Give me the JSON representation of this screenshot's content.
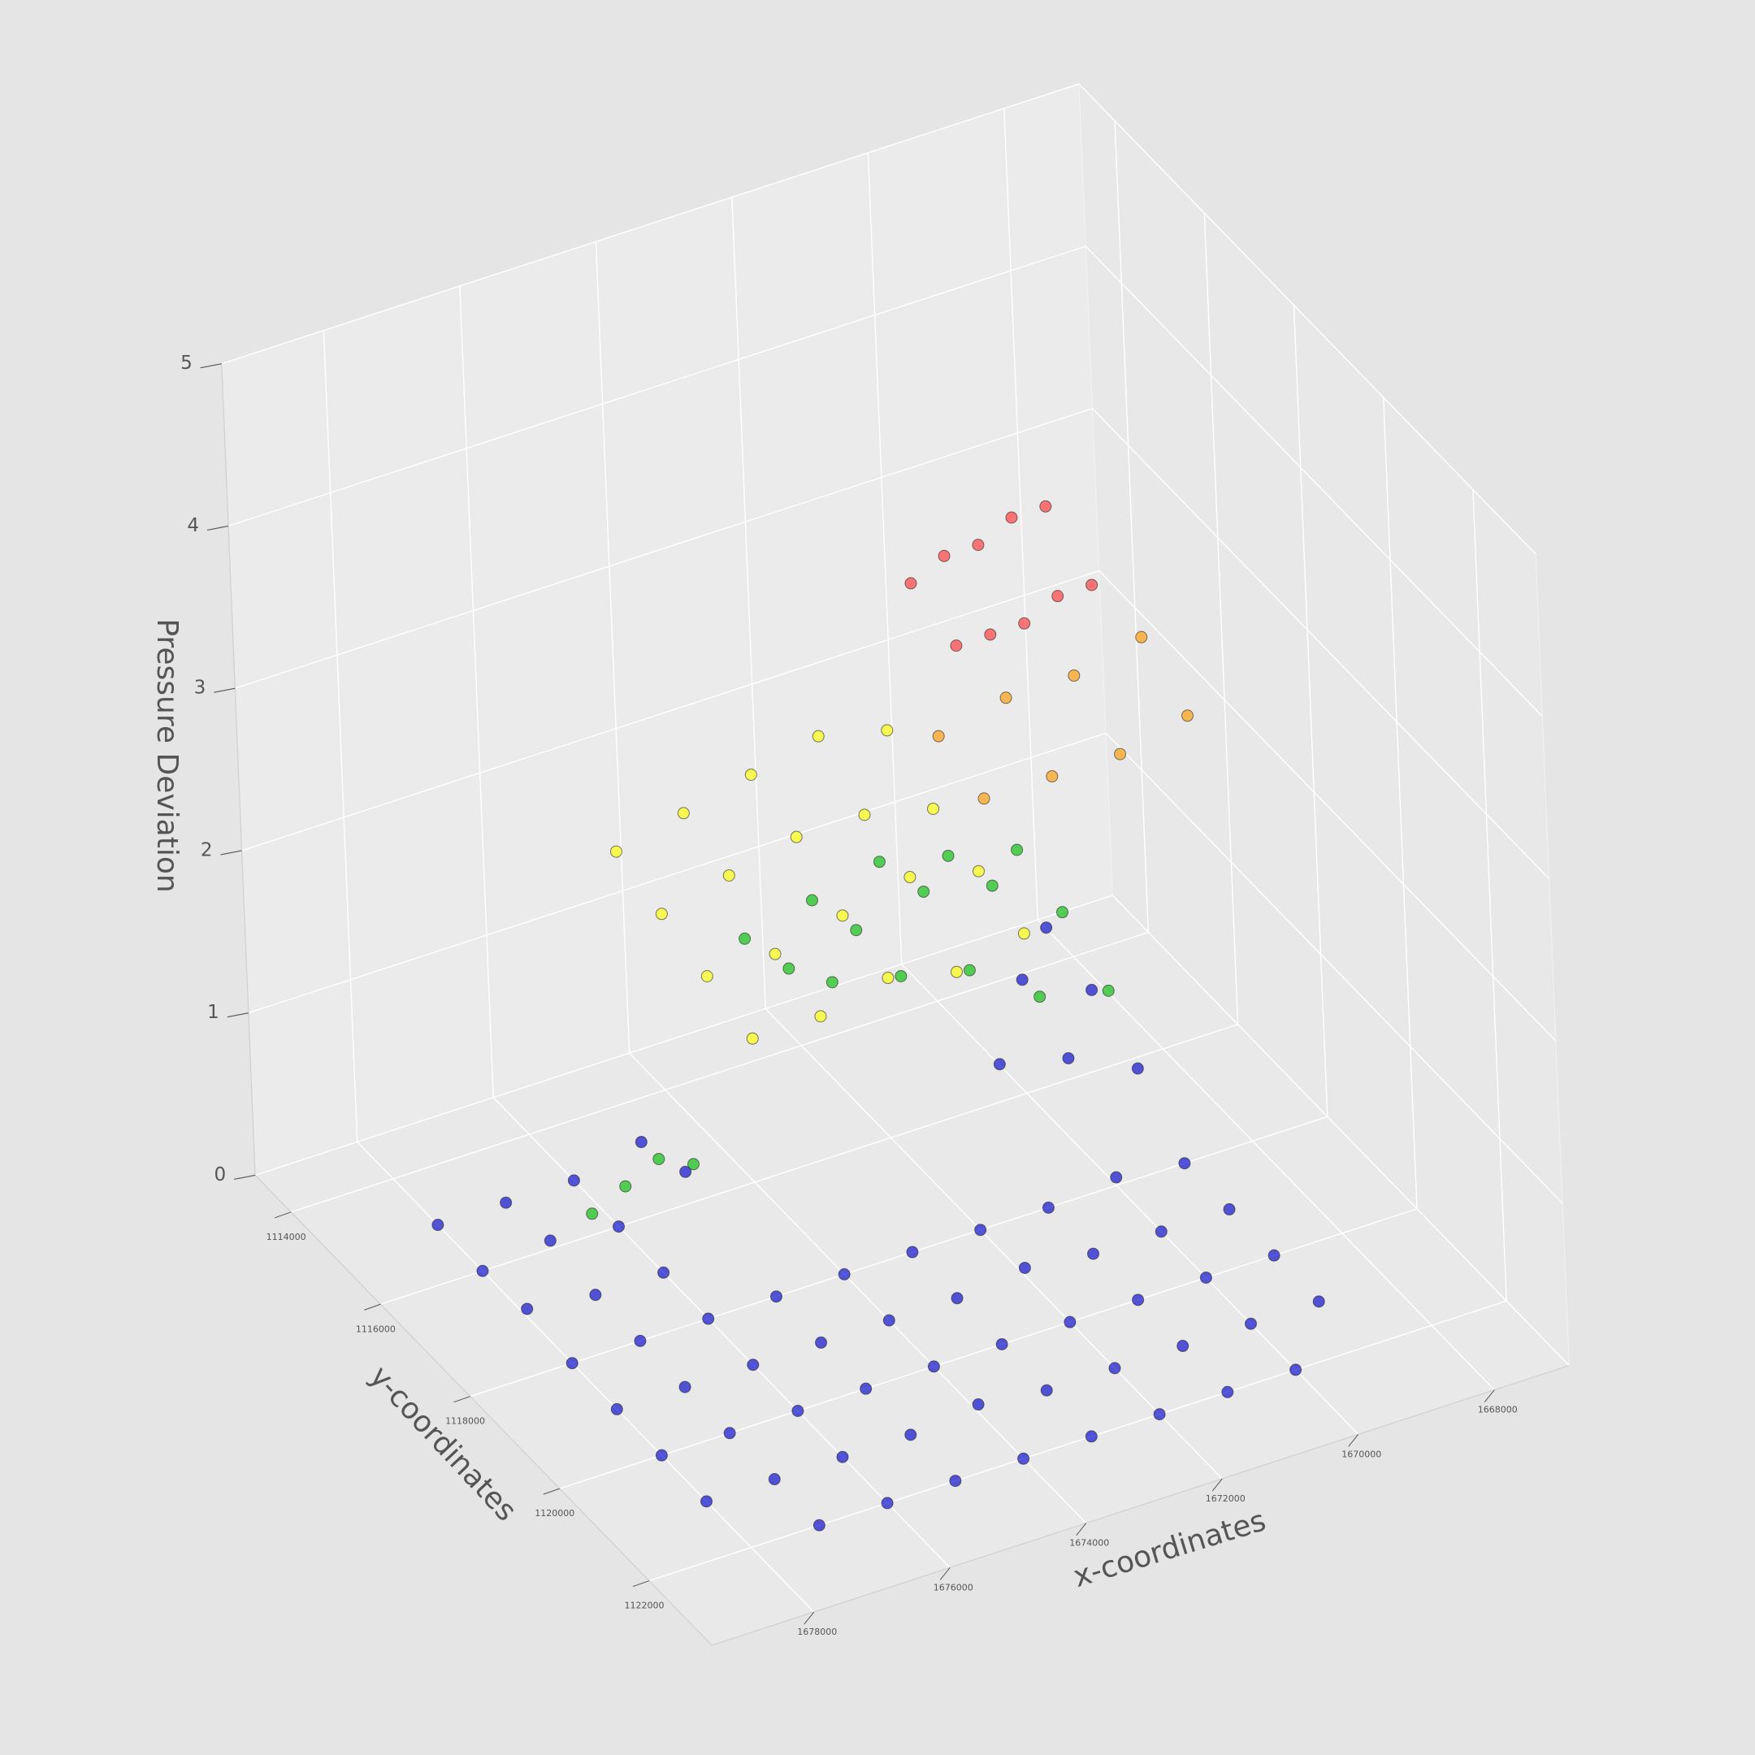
{
  "chart_data": {
    "type": "scatter3d",
    "xlabel": "x-coordinates",
    "ylabel": "y-coordinates",
    "zlabel": "Pressure Deviation",
    "xlim": [
      1666900,
      1679500
    ],
    "ylim": [
      1113200,
      1123400
    ],
    "zlim": [
      0,
      5
    ],
    "xticks": [
      1668000,
      1670000,
      1672000,
      1674000,
      1676000,
      1678000
    ],
    "yticks": [
      1114000,
      1116000,
      1118000,
      1120000,
      1122000
    ],
    "zticks": [
      0,
      1,
      2,
      3,
      4,
      5
    ],
    "grid": true,
    "series": [
      {
        "color": "#0000cc",
        "x": [
          1669000,
          1675000,
          1676000,
          1677000,
          1678000,
          1669000,
          1670000,
          1675000,
          1676000,
          1677000,
          1678000,
          1669000,
          1670000,
          1671000,
          1676000,
          1677000,
          1678000,
          1669000,
          1670000,
          1671000,
          1672000,
          1673000,
          1674000,
          1675000,
          1676000,
          1677000,
          1678000,
          1669000,
          1670000,
          1671000,
          1672000,
          1673000,
          1674000,
          1675000,
          1676000,
          1677000,
          1678000,
          1669000,
          1670000,
          1671000,
          1672000,
          1673000,
          1674000,
          1675000,
          1676000,
          1677000,
          1678000,
          1669000,
          1670000,
          1671000,
          1672000,
          1673000,
          1674000,
          1675000,
          1676000,
          1677000,
          1678000,
          1670000,
          1671000,
          1672000,
          1673000,
          1674000,
          1675000,
          1676000,
          1677000
        ],
        "y": [
          1115000,
          1115000,
          1115000,
          1115000,
          1115000,
          1116000,
          1116000,
          1116000,
          1116000,
          1116000,
          1116000,
          1117000,
          1117000,
          1117000,
          1117000,
          1117000,
          1117000,
          1118000,
          1118000,
          1118000,
          1118000,
          1118000,
          1118000,
          1118000,
          1118000,
          1118000,
          1118000,
          1119000,
          1119000,
          1119000,
          1119000,
          1119000,
          1119000,
          1119000,
          1119000,
          1119000,
          1119000,
          1120000,
          1120000,
          1120000,
          1120000,
          1120000,
          1120000,
          1120000,
          1120000,
          1120000,
          1120000,
          1121000,
          1121000,
          1121000,
          1121000,
          1121000,
          1121000,
          1121000,
          1121000,
          1121000,
          1121000,
          1122000,
          1122000,
          1122000,
          1122000,
          1122000,
          1122000,
          1122000,
          1122000
        ],
        "z": [
          0.6,
          0.1,
          0,
          0,
          0,
          0.5,
          0.7,
          0.2,
          0,
          0.05,
          0,
          0.3,
          0.5,
          0.6,
          0,
          0,
          0.05,
          0,
          0.05,
          0,
          0,
          0,
          0,
          0,
          0,
          0,
          0,
          0,
          0,
          0,
          0.05,
          0,
          0,
          0,
          0,
          0,
          0,
          0,
          0,
          0,
          0,
          0,
          0,
          0,
          0,
          0,
          0,
          0,
          0,
          0,
          0,
          0,
          0.05,
          0,
          0,
          0,
          0,
          0,
          0,
          0,
          0,
          0,
          0,
          0,
          0
        ]
      },
      {
        "color": "#00bb00",
        "x": [
          1670000,
          1671000,
          1672000,
          1673000,
          1674000,
          1670000,
          1671000,
          1672000,
          1673000,
          1674000,
          1670000,
          1671000,
          1672000,
          1673000,
          1674000,
          1675500,
          1676000,
          1676500,
          1677000
        ],
        "y": [
          1116000,
          1116000,
          1116000,
          1116000,
          1116000,
          1117000,
          1117000,
          1117000,
          1117000,
          1117000,
          1118000,
          1118000,
          1118000,
          1118000,
          1118000,
          1117000,
          1117000,
          1117000,
          1117000
        ],
        "z": [
          1.5,
          1.6,
          1.7,
          1.6,
          1.5,
          1.4,
          1.7,
          1.8,
          1.7,
          1.6,
          1.2,
          1.3,
          1.6,
          1.7,
          1.8,
          0.6,
          0.7,
          0.6,
          0.5
        ]
      },
      {
        "color": "#ffff00",
        "x": [
          1671500,
          1672500,
          1673500,
          1674500,
          1675500,
          1671500,
          1672500,
          1673500,
          1674500,
          1675500,
          1671500,
          1672500,
          1673500,
          1674500,
          1675500,
          1671500,
          1672500,
          1673500,
          1674500,
          1675500
        ],
        "y": [
          1115500,
          1115500,
          1115500,
          1115500,
          1115500,
          1116500,
          1116500,
          1116500,
          1116500,
          1116500,
          1117500,
          1117500,
          1117500,
          1117500,
          1117500,
          1118500,
          1118500,
          1118500,
          1118500,
          1118500
        ],
        "z": [
          2.3,
          2.4,
          2.3,
          2.2,
          2.1,
          2.1,
          2.2,
          2.2,
          2.1,
          2.0,
          2.0,
          2.1,
          2.0,
          1.9,
          1.9,
          1.9,
          1.8,
          1.9,
          1.8,
          1.8
        ]
      },
      {
        "color": "#ff9900",
        "x": [
          1669000,
          1670000,
          1671000,
          1672000,
          1669000,
          1670000,
          1671000,
          1672000
        ],
        "y": [
          1117500,
          1117500,
          1117500,
          1117500,
          1118500,
          1118500,
          1118500,
          1118500
        ],
        "z": [
          3.1,
          3.0,
          3.0,
          2.9,
          2.9,
          2.8,
          2.8,
          2.8
        ]
      },
      {
        "color": "#ff3333",
        "x": [
          1670000,
          1670500,
          1671000,
          1671500,
          1672000,
          1670000,
          1670500,
          1671000,
          1671500,
          1672000
        ],
        "y": [
          1117000,
          1117000,
          1117000,
          1117000,
          1117000,
          1118000,
          1118000,
          1118000,
          1118000,
          1118000
        ],
        "z": [
          3.9,
          3.9,
          3.8,
          3.8,
          3.7,
          3.7,
          3.7,
          3.6,
          3.6,
          3.6
        ]
      }
    ]
  }
}
